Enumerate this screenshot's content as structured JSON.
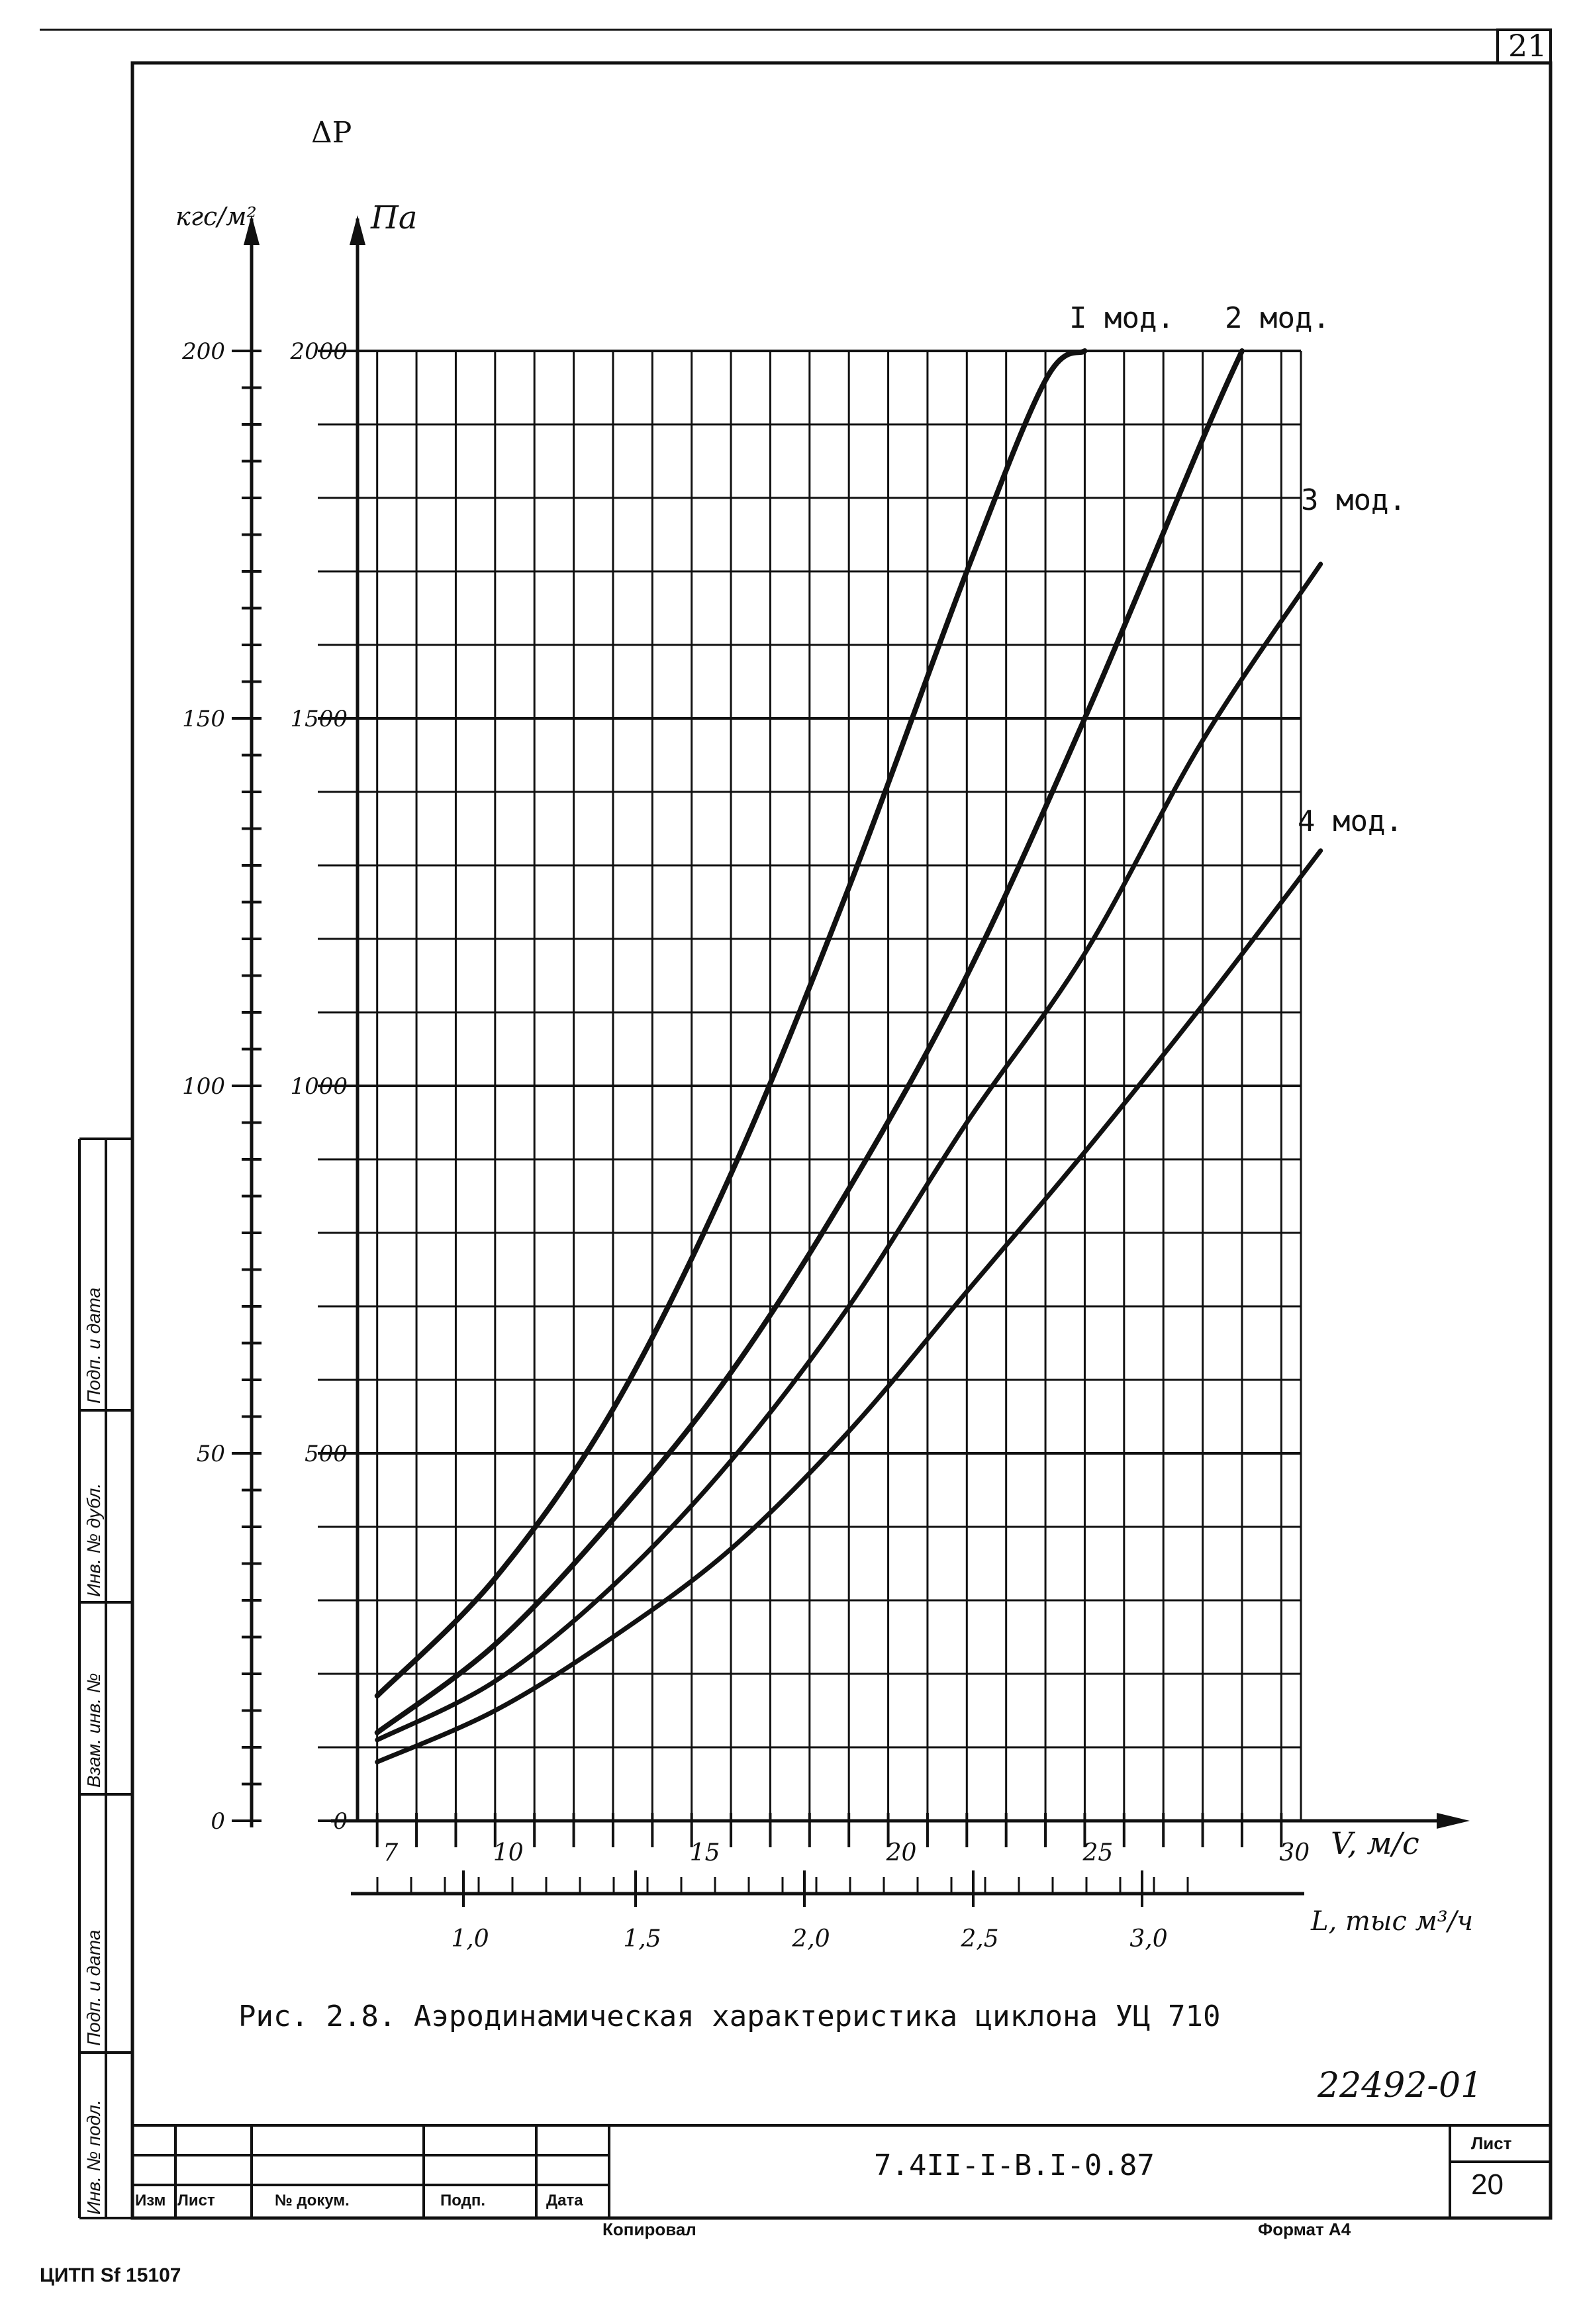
{
  "sheet_number_top": "21",
  "figure_caption": "Рис. 2.8. Аэродинамическая характеристика циклона УЦ 710",
  "handwritten_code": "22492-01",
  "stamp": {
    "document_code": "7.4II-I-B.I-0.87",
    "sheet_label": "Лист",
    "sheet_number": "20",
    "columns": [
      "Изм",
      "Лист",
      "№ докум.",
      "Подп.",
      "Дата"
    ],
    "copied_label": "Копировал",
    "format_label": "Формат А4"
  },
  "side_stamp": [
    "Инв. № подл.",
    "Подп. и дата",
    "Взам. инв. №",
    "Инв. № дубл.",
    "Подп. и дата"
  ],
  "footer_print": "ЦИТП   Sf 15107",
  "chart_data": {
    "type": "line",
    "title": "Аэродинамическая характеристика циклона УЦ 710",
    "y_symbol": "ΔP",
    "y_label_left": "кгс/м²",
    "y_label_right": "Па",
    "y_ticks_kgs": [
      "0",
      "50",
      "100",
      "150",
      "200"
    ],
    "y_ticks_pa": [
      "0",
      "500",
      "1000",
      "1500",
      "2000"
    ],
    "ylim_pa": [
      0,
      2000
    ],
    "xlabel_v": "V, м/с",
    "xlim_v": [
      6.5,
      30.5
    ],
    "x_ticks_v": [
      "7",
      "10",
      "15",
      "20",
      "25",
      "30"
    ],
    "xlabel_l": "L, тыс м³/ч",
    "x_ticks_l": [
      "1,0",
      "1,5",
      "2,0",
      "2,5",
      "3,0"
    ],
    "grid": true,
    "series": [
      {
        "name": "I мод.",
        "v": [
          7,
          10,
          13,
          16,
          19,
          22,
          24,
          25
        ],
        "pa": [
          170,
          330,
          560,
          880,
          1270,
          1700,
          1960,
          2000
        ]
      },
      {
        "name": "2 мод.",
        "v": [
          7,
          10,
          13,
          16,
          19,
          22,
          25,
          28,
          29
        ],
        "pa": [
          120,
          240,
          410,
          610,
          860,
          1150,
          1500,
          1880,
          2000
        ]
      },
      {
        "name": "3 мод.",
        "v": [
          7,
          10,
          13,
          16,
          19,
          22,
          25,
          28,
          31
        ],
        "pa": [
          110,
          190,
          320,
          490,
          700,
          950,
          1180,
          1470,
          1710
        ]
      },
      {
        "name": "4 мод.",
        "v": [
          7,
          10,
          13,
          16,
          19,
          22,
          25,
          28,
          31
        ],
        "pa": [
          80,
          150,
          250,
          370,
          530,
          720,
          910,
          1110,
          1320
        ]
      }
    ]
  }
}
